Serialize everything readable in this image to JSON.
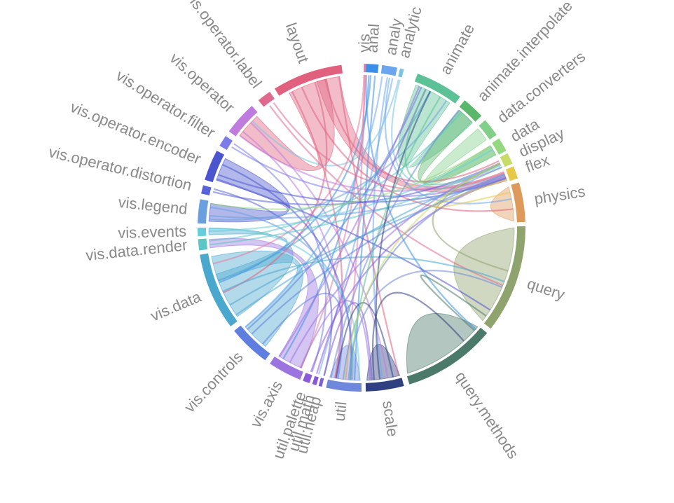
{
  "diagram": {
    "groups": [
      {
        "label": "vis",
        "color": "#e57ba0",
        "start": 0.8,
        "end": 1.6
      },
      {
        "label": "anal",
        "color": "#3a8fe8",
        "start": 1.6,
        "end": 6.0
      },
      {
        "label": "analy",
        "color": "#6aa6ef",
        "start": 7.2,
        "end": 12.6
      },
      {
        "label": "analytic",
        "color": "#7cc3e2",
        "start": 13.6,
        "end": 15.0
      },
      {
        "label": "animate",
        "color": "#5cc196",
        "start": 20.0,
        "end": 37.0
      },
      {
        "label": "animate.interpolate",
        "color": "#5ab86a",
        "start": 39.0,
        "end": 47.0
      },
      {
        "label": "data.converters",
        "color": "#82cf8a",
        "start": 49.0,
        "end": 55.5
      },
      {
        "label": "data",
        "color": "#96d87d",
        "start": 57.0,
        "end": 62.0
      },
      {
        "label": "display",
        "color": "#c7dc68",
        "start": 63.0,
        "end": 67.0
      },
      {
        "label": "flex",
        "color": "#e8c848",
        "start": 68.0,
        "end": 72.5
      },
      {
        "label": "physics",
        "color": "#dd9a5a",
        "start": 74.0,
        "end": 88.0
      },
      {
        "label": "query",
        "color": "#8ea36e",
        "start": 89.5,
        "end": 128.0
      },
      {
        "label": "query.methods",
        "color": "#4b7a6a",
        "start": 130.0,
        "end": 163.0
      },
      {
        "label": "scale",
        "color": "#2f3f80",
        "start": 165.0,
        "end": 178.5
      },
      {
        "label": "util",
        "color": "#6f88dc",
        "start": 180.0,
        "end": 192.5
      },
      {
        "label": "util.heap",
        "color": "#7b5fd6",
        "start": 194.0,
        "end": 195.2
      },
      {
        "label": "util.math",
        "color": "#8a56d8",
        "start": 196.0,
        "end": 197.5
      },
      {
        "label": "util.palette",
        "color": "#8b5bdb",
        "start": 198.5,
        "end": 201.0
      },
      {
        "label": "vis.axis",
        "color": "#9b74e0",
        "start": 202.0,
        "end": 214.0
      },
      {
        "label": "vis.controls",
        "color": "#5f7fe0",
        "start": 216.0,
        "end": 231.0
      },
      {
        "label": "vis.data",
        "color": "#4aa8cf",
        "start": 233.0,
        "end": 260.5
      },
      {
        "label": "vis.data.render",
        "color": "#5cc6c6",
        "start": 262.0,
        "end": 266.0
      },
      {
        "label": "vis.events",
        "color": "#66cddc",
        "start": 267.0,
        "end": 270.0
      },
      {
        "label": "vis.legend",
        "color": "#6aa0e0",
        "start": 271.5,
        "end": 280.0
      },
      {
        "label": "vis.operator.distortion",
        "color": "#5a62d8",
        "start": 282.0,
        "end": 285.0
      },
      {
        "label": "vis.operator.encoder",
        "color": "#4a55cf",
        "start": 287.0,
        "end": 298.0
      },
      {
        "label": "vis.operator.filter",
        "color": "#7c7ce8",
        "start": 300.0,
        "end": 304.0
      },
      {
        "label": "vis.operator",
        "color": "#c07bdf",
        "start": 306.0,
        "end": 318.0
      },
      {
        "label": "vis.operator.label",
        "color": "#e06a8e",
        "start": 321.0,
        "end": 326.0
      },
      {
        "label": "layout",
        "color": "#e0607e",
        "start": 328.0,
        "end": 353.0
      }
    ]
  }
}
